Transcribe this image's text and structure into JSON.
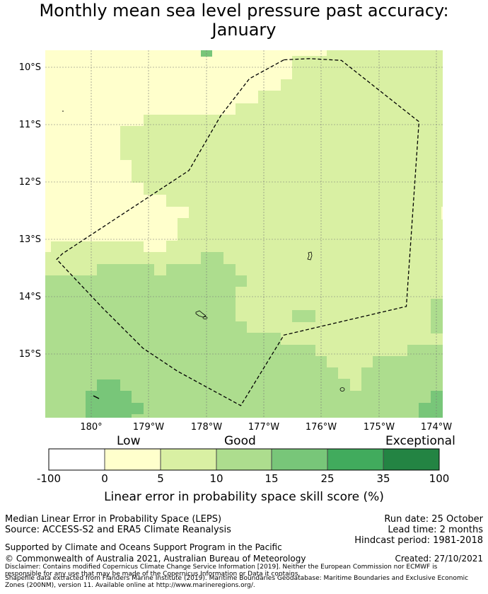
{
  "title": {
    "line1": "Monthly mean sea level pressure past accuracy:",
    "line2": "January"
  },
  "map": {
    "lat_labels": [
      "10°S",
      "11°S",
      "12°S",
      "13°S",
      "14°S",
      "15°S"
    ],
    "lon_labels": [
      "180°",
      "179°W",
      "178°W",
      "177°W",
      "176°W",
      "175°W",
      "174°W"
    ],
    "lon_range_deg_east": [
      179.2,
      186.1
    ],
    "lat_range_deg": [
      -9.7,
      -16.1
    ],
    "colors": {
      "low": "#ffffcc",
      "good_low": "#d9f0a3",
      "good_high": "#addd8e",
      "better": "#78c679",
      "boundary": "#000000"
    },
    "eez_boundary_lonlat": [
      [
        -176.65,
        -9.87
      ],
      [
        -176.2,
        -9.85
      ],
      [
        -175.65,
        -9.88
      ],
      [
        -174.3,
        -10.95
      ],
      [
        -174.52,
        -14.17
      ],
      [
        -176.65,
        -14.67
      ],
      [
        -177.4,
        -15.9
      ],
      [
        -178.5,
        -15.3
      ],
      [
        -179.1,
        -14.9
      ],
      [
        -179.8,
        -14.2
      ],
      [
        -180.6,
        -13.35
      ],
      [
        -180.5,
        -13.25
      ],
      [
        -178.3,
        -11.8
      ],
      [
        -177.75,
        -10.85
      ],
      [
        -177.25,
        -10.2
      ]
    ]
  },
  "colorbar": {
    "categories": [
      "Low",
      "Good",
      "Exceptional"
    ],
    "ticks": [
      "-100",
      "0",
      "5",
      "10",
      "15",
      "25",
      "35",
      "100"
    ],
    "colors": [
      "#ffffff",
      "#ffffcc",
      "#d9f0a3",
      "#addd8e",
      "#78c679",
      "#41ab5d",
      "#238443"
    ],
    "label": "Linear error in probability space skill score (%)"
  },
  "info": {
    "left1": "Median Linear Error in Probability Space (LEPS)",
    "left2": "Source: ACCESS-S2 and ERA5 Climate Reanalysis",
    "right1": "Run date: 25 October",
    "right2": "Lead time: 2 months",
    "right3": "Hindcast period: 1981-2018",
    "support": "Supported by Climate and Oceans Support Program in the Pacific",
    "copyright": "© Commonwealth of Australia 2021, Australian Bureau of Meteorology",
    "created": "Created: 27/10/2021",
    "disclaimer1": "Disclaimer: Contains modified Copernicus Climate Change Service Information [2019]. Neither the European Commission nor ECMWF is",
    "disclaimer2": "responsible for any use that may be made of the Copernicus Information or Data it contains.",
    "shapefile1": "Shapefile data extracted from Flanders Marine Institute (2019). Maritime Boundaries Geodatabase: Maritime Boundaries and Exclusive Economic",
    "shapefile2": "Zones (200NM), version 11. Available online at http://www.marineregions.org/."
  }
}
